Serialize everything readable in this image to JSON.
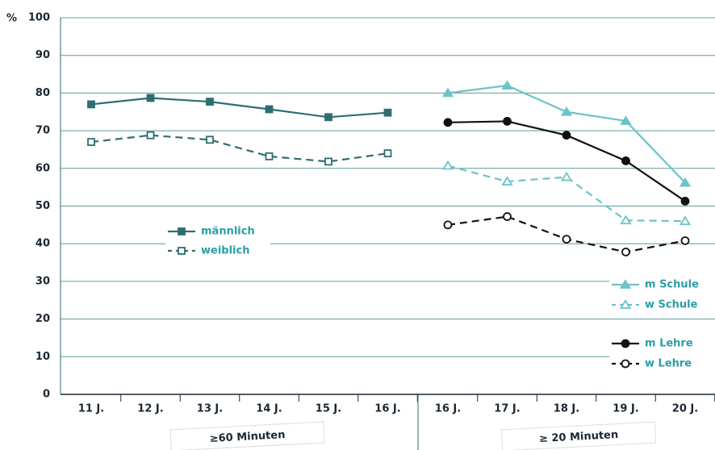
{
  "chart_data": [
    {
      "type": "line",
      "ylabel": "%",
      "xlabel": "≥60 Minuten",
      "categories": [
        "11 J.",
        "12 J.",
        "13 J.",
        "14 J.",
        "15 J.",
        "16 J."
      ],
      "ylim": [
        0,
        100
      ],
      "yticks": [
        0,
        10,
        20,
        30,
        40,
        50,
        60,
        70,
        80,
        90,
        100
      ],
      "grid": true,
      "series": [
        {
          "name": "männlich",
          "color": "#2e6e72",
          "marker": "square",
          "filled": true,
          "dashed": false,
          "values": [
            77,
            78.7,
            77.7,
            75.7,
            73.6,
            74.8
          ]
        },
        {
          "name": "weiblich",
          "color": "#2e6e72",
          "marker": "square",
          "filled": false,
          "dashed": true,
          "values": [
            67,
            68.8,
            67.6,
            63.2,
            61.8,
            64
          ]
        }
      ]
    },
    {
      "type": "line",
      "xlabel": "≥ 20 Minuten",
      "categories": [
        "16 J.",
        "17 J.",
        "18 J.",
        "19 J.",
        "20 J."
      ],
      "ylim": [
        0,
        100
      ],
      "yticks": [
        0,
        10,
        20,
        30,
        40,
        50,
        60,
        70,
        80,
        90,
        100
      ],
      "grid": true,
      "series": [
        {
          "name": "m Schule",
          "color": "#6cc3c8",
          "marker": "triangle",
          "filled": true,
          "dashed": false,
          "values": [
            80,
            82,
            75,
            72.6,
            56.2
          ]
        },
        {
          "name": "w Schule",
          "color": "#6cc3c8",
          "marker": "triangle",
          "filled": false,
          "dashed": true,
          "values": [
            60.7,
            56.5,
            57.7,
            46.2,
            46
          ]
        },
        {
          "name": "m  Lehre",
          "color": "#111111",
          "marker": "circle",
          "filled": true,
          "dashed": false,
          "values": [
            72.2,
            72.5,
            68.8,
            62,
            51.3
          ]
        },
        {
          "name": "w  Lehre",
          "color": "#111111",
          "marker": "circle",
          "filled": false,
          "dashed": true,
          "values": [
            45,
            47.2,
            41.2,
            37.8,
            40.8
          ]
        }
      ]
    }
  ]
}
